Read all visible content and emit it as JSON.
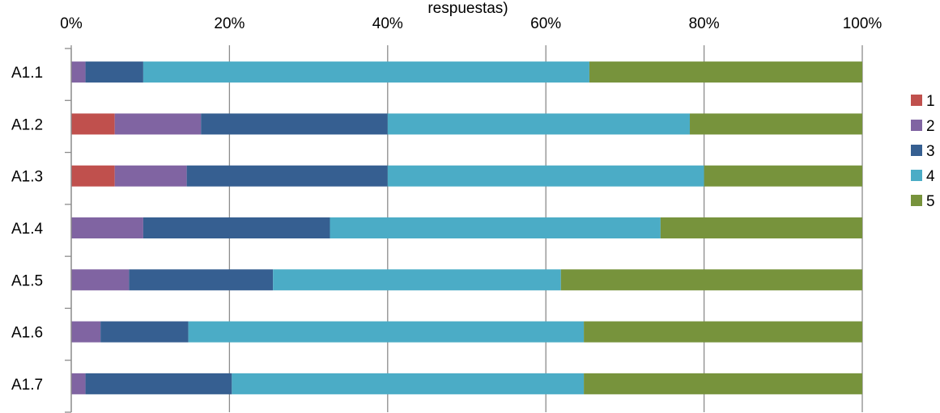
{
  "chart_data": {
    "type": "bar",
    "orientation": "horizontal",
    "stacked": "percent",
    "title": "respuestas)",
    "xlim": [
      0,
      100
    ],
    "x_ticks": [
      "0%",
      "20%",
      "40%",
      "60%",
      "80%",
      "100%"
    ],
    "categories": [
      "A1.1",
      "A1.2",
      "A1.3",
      "A1.4",
      "A1.5",
      "A1.6",
      "A1.7"
    ],
    "series": [
      {
        "name": "1",
        "color": "#C0504D",
        "values": [
          0,
          5.5,
          5.5,
          0,
          0,
          0,
          0
        ]
      },
      {
        "name": "2",
        "color": "#8064A2",
        "values": [
          1.8,
          10.9,
          9.1,
          9.1,
          7.3,
          3.7,
          1.8
        ]
      },
      {
        "name": "3",
        "color": "#365F91",
        "values": [
          7.3,
          23.6,
          25.4,
          23.6,
          18.2,
          11.1,
          18.5
        ]
      },
      {
        "name": "4",
        "color": "#4BACC6",
        "values": [
          56.4,
          38.2,
          40.0,
          41.8,
          36.4,
          50.0,
          44.5
        ]
      },
      {
        "name": "5",
        "color": "#77933C",
        "values": [
          34.5,
          21.8,
          20.0,
          25.5,
          38.1,
          35.2,
          35.2
        ]
      }
    ],
    "grid": true,
    "legend": "right"
  }
}
